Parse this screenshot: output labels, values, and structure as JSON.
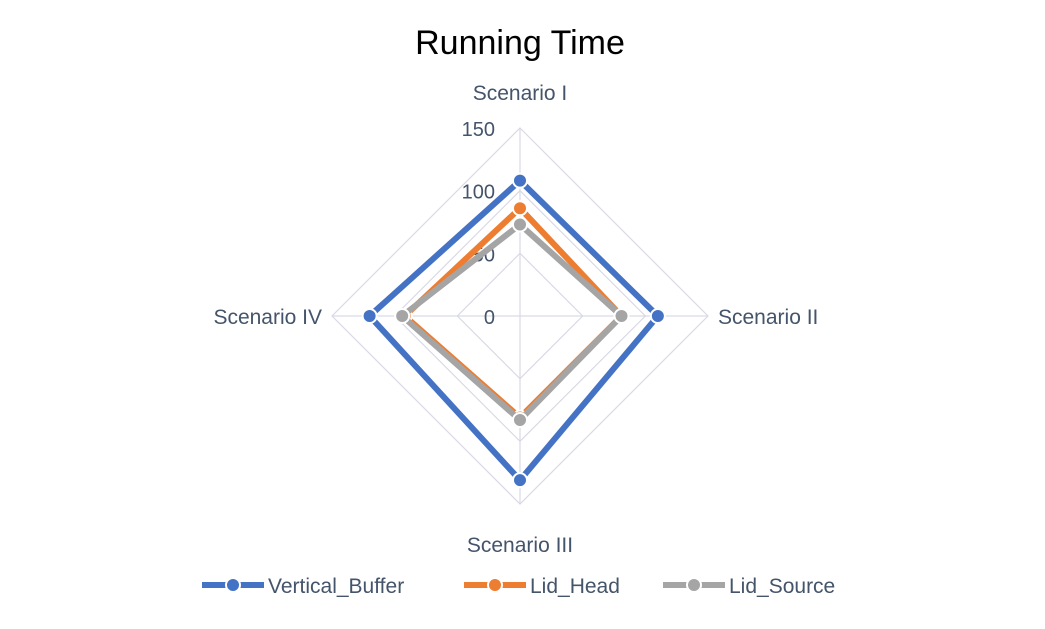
{
  "chart_data": {
    "type": "radar",
    "title": "Running Time",
    "categories": [
      "Scenario I",
      "Scenario II",
      "Scenario III",
      "Scenario IV"
    ],
    "axis": {
      "min": 0,
      "max": 150,
      "ticks": [
        0,
        50,
        100,
        150
      ]
    },
    "series": [
      {
        "name": "Vertical_Buffer",
        "color": "#4472C4",
        "values": [
          108,
          110,
          131,
          120
        ]
      },
      {
        "name": "Lid_Head",
        "color": "#ED7D31",
        "values": [
          86,
          81,
          81,
          92
        ]
      },
      {
        "name": "Lid_Source",
        "color": "#A5A5A5",
        "values": [
          73,
          81,
          83,
          94
        ]
      }
    ],
    "grid": true,
    "legend_position": "bottom"
  }
}
